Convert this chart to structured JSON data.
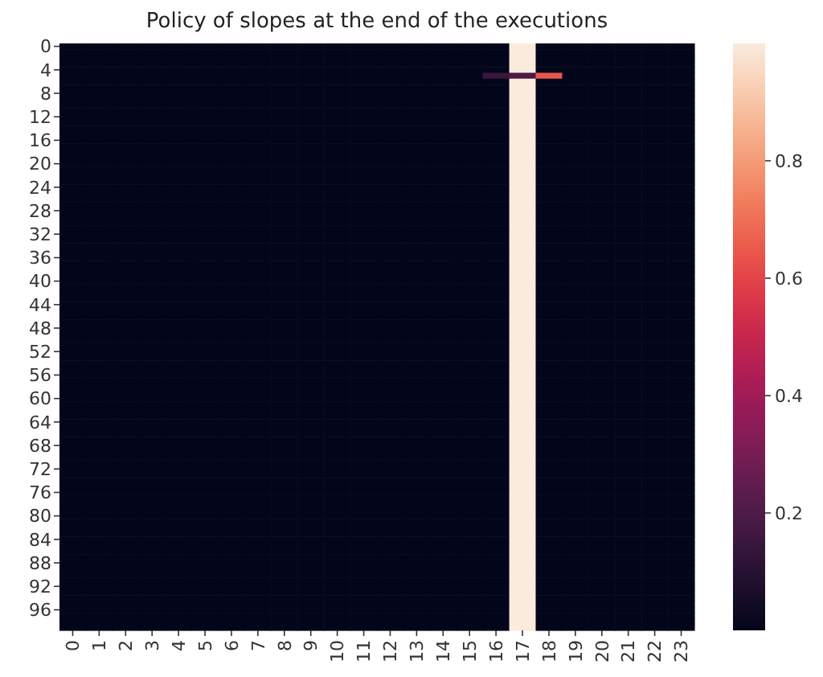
{
  "chart_data": {
    "type": "heatmap",
    "title": "Policy of slopes at the end of the executions",
    "categories": [
      "0",
      "1",
      "2",
      "3",
      "4",
      "5",
      "6",
      "7",
      "8",
      "9",
      "10",
      "11",
      "12",
      "13",
      "14",
      "15",
      "16",
      "17",
      "18",
      "19",
      "20",
      "21",
      "22",
      "23"
    ],
    "y_categories": [
      "0",
      null,
      null,
      null,
      "4",
      null,
      null,
      null,
      "8",
      null,
      null,
      null,
      "12",
      null,
      null,
      null,
      "16",
      null,
      null,
      null,
      "20",
      null,
      null,
      null,
      "24",
      null,
      null,
      null,
      "28",
      null,
      null,
      null,
      "32",
      null,
      null,
      null,
      "36",
      null,
      null,
      null,
      "40",
      null,
      null,
      null,
      "44",
      null,
      null,
      null,
      "48",
      null,
      null,
      null,
      "52",
      null,
      null,
      null,
      "56",
      null,
      null,
      null,
      "60",
      null,
      null,
      null,
      "64",
      null,
      null,
      null,
      "68",
      null,
      null,
      null,
      "72",
      null,
      null,
      null,
      "76",
      null,
      null,
      null,
      "80",
      null,
      null,
      null,
      "84",
      null,
      null,
      null,
      "88",
      null,
      null,
      null,
      "92",
      null,
      null,
      null,
      "96",
      null,
      null,
      null
    ],
    "clim": [
      0,
      1
    ],
    "cticks": [
      0.2,
      0.4,
      0.6,
      0.8
    ],
    "cells": [
      [
        0,
        0,
        0,
        0,
        0,
        0,
        0,
        0,
        0,
        0,
        0,
        0,
        0,
        0,
        0,
        0,
        0,
        1,
        0,
        0,
        0,
        0,
        0,
        0
      ],
      [
        0,
        0,
        0,
        0,
        0,
        0,
        0,
        0,
        0,
        0,
        0,
        0,
        0,
        0,
        0,
        0,
        0,
        1,
        0,
        0,
        0,
        0,
        0,
        0
      ],
      [
        0,
        0,
        0,
        0,
        0,
        0,
        0,
        0,
        0,
        0,
        0,
        0,
        0,
        0,
        0,
        0,
        0,
        1,
        0,
        0,
        0,
        0,
        0,
        0
      ],
      [
        0,
        0,
        0,
        0,
        0,
        0,
        0,
        0,
        0,
        0,
        0,
        0,
        0,
        0,
        0,
        0,
        0,
        1,
        0,
        0,
        0,
        0,
        0,
        0
      ],
      [
        0,
        0,
        0,
        0,
        0,
        0,
        0,
        0,
        0,
        0,
        0,
        0,
        0,
        0,
        0,
        0,
        0,
        1,
        0,
        0,
        0,
        0,
        0,
        0
      ],
      [
        0,
        0,
        0,
        0,
        0,
        0,
        0,
        0,
        0,
        0,
        0,
        0,
        0,
        0,
        0,
        0,
        0.15,
        0.2,
        0.65,
        0,
        0,
        0,
        0,
        0
      ],
      [
        0,
        0,
        0,
        0,
        0,
        0,
        0,
        0,
        0,
        0,
        0,
        0,
        0,
        0,
        0,
        0,
        0,
        1,
        0,
        0,
        0,
        0,
        0,
        0
      ],
      [
        0,
        0,
        0,
        0,
        0,
        0,
        0,
        0,
        0,
        0,
        0,
        0,
        0,
        0,
        0,
        0,
        0,
        1,
        0,
        0,
        0,
        0,
        0,
        0
      ],
      [
        0,
        0,
        0,
        0,
        0,
        0,
        0,
        0,
        0,
        0,
        0,
        0,
        0,
        0,
        0,
        0,
        0,
        1,
        0,
        0,
        0,
        0,
        0,
        0
      ],
      [
        0,
        0,
        0,
        0,
        0,
        0,
        0,
        0,
        0,
        0,
        0,
        0,
        0,
        0,
        0,
        0,
        0,
        1,
        0,
        0,
        0,
        0,
        0,
        0
      ],
      [
        0,
        0,
        0,
        0,
        0,
        0,
        0,
        0,
        0,
        0,
        0,
        0,
        0,
        0,
        0,
        0,
        0,
        1,
        0,
        0,
        0,
        0,
        0,
        0
      ],
      [
        0,
        0,
        0,
        0,
        0,
        0,
        0,
        0,
        0,
        0,
        0,
        0,
        0,
        0,
        0,
        0,
        0,
        1,
        0,
        0,
        0,
        0,
        0,
        0
      ],
      [
        0,
        0,
        0,
        0,
        0,
        0,
        0,
        0,
        0,
        0,
        0,
        0,
        0,
        0,
        0,
        0,
        0,
        1,
        0,
        0,
        0,
        0,
        0,
        0
      ],
      [
        0,
        0,
        0,
        0,
        0,
        0,
        0,
        0,
        0,
        0,
        0,
        0,
        0,
        0,
        0,
        0,
        0,
        1,
        0,
        0,
        0,
        0,
        0,
        0
      ],
      [
        0,
        0,
        0,
        0,
        0,
        0,
        0,
        0,
        0,
        0,
        0,
        0,
        0,
        0,
        0,
        0,
        0,
        1,
        0,
        0,
        0,
        0,
        0,
        0
      ],
      [
        0,
        0,
        0,
        0,
        0,
        0,
        0,
        0,
        0,
        0,
        0,
        0,
        0,
        0,
        0,
        0,
        0,
        1,
        0,
        0,
        0,
        0,
        0,
        0
      ],
      [
        0,
        0,
        0,
        0,
        0,
        0,
        0,
        0,
        0,
        0,
        0,
        0,
        0,
        0,
        0,
        0,
        0,
        1,
        0,
        0,
        0,
        0,
        0,
        0
      ],
      [
        0,
        0,
        0,
        0,
        0,
        0,
        0,
        0,
        0,
        0,
        0,
        0,
        0,
        0,
        0,
        0,
        0,
        1,
        0,
        0,
        0,
        0,
        0,
        0
      ],
      [
        0,
        0,
        0,
        0,
        0,
        0,
        0,
        0,
        0,
        0,
        0,
        0,
        0,
        0,
        0,
        0,
        0,
        1,
        0,
        0,
        0,
        0,
        0,
        0
      ],
      [
        0,
        0,
        0,
        0,
        0,
        0,
        0,
        0,
        0,
        0,
        0,
        0,
        0,
        0,
        0,
        0,
        0,
        1,
        0,
        0,
        0,
        0,
        0,
        0
      ],
      [
        0,
        0,
        0,
        0,
        0,
        0,
        0,
        0,
        0,
        0,
        0,
        0,
        0,
        0,
        0,
        0,
        0,
        1,
        0,
        0,
        0,
        0,
        0,
        0
      ],
      [
        0,
        0,
        0,
        0,
        0,
        0,
        0,
        0,
        0,
        0,
        0,
        0,
        0,
        0,
        0,
        0,
        0,
        1,
        0,
        0,
        0,
        0,
        0,
        0
      ],
      [
        0,
        0,
        0,
        0,
        0,
        0,
        0,
        0,
        0,
        0,
        0,
        0,
        0,
        0,
        0,
        0,
        0,
        1,
        0,
        0,
        0,
        0,
        0,
        0
      ],
      [
        0,
        0,
        0,
        0,
        0,
        0,
        0,
        0,
        0,
        0,
        0,
        0,
        0,
        0,
        0,
        0,
        0,
        1,
        0,
        0,
        0,
        0,
        0,
        0
      ],
      [
        0,
        0,
        0,
        0,
        0,
        0,
        0,
        0,
        0,
        0,
        0,
        0,
        0,
        0,
        0,
        0,
        0,
        1,
        0,
        0,
        0,
        0,
        0,
        0
      ],
      [
        0,
        0,
        0,
        0,
        0,
        0,
        0,
        0,
        0,
        0,
        0,
        0,
        0,
        0,
        0,
        0,
        0,
        1,
        0,
        0,
        0,
        0,
        0,
        0
      ],
      [
        0,
        0,
        0,
        0,
        0,
        0,
        0,
        0,
        0,
        0,
        0,
        0,
        0,
        0,
        0,
        0,
        0,
        1,
        0,
        0,
        0,
        0,
        0,
        0
      ],
      [
        0,
        0,
        0,
        0,
        0,
        0,
        0,
        0,
        0,
        0,
        0,
        0,
        0,
        0,
        0,
        0,
        0,
        1,
        0,
        0,
        0,
        0,
        0,
        0
      ],
      [
        0,
        0,
        0,
        0,
        0,
        0,
        0,
        0,
        0,
        0,
        0,
        0,
        0,
        0,
        0,
        0,
        0,
        1,
        0,
        0,
        0,
        0,
        0,
        0
      ],
      [
        0,
        0,
        0,
        0,
        0,
        0,
        0,
        0,
        0,
        0,
        0,
        0,
        0,
        0,
        0,
        0,
        0,
        1,
        0,
        0,
        0,
        0,
        0,
        0
      ],
      [
        0,
        0,
        0,
        0,
        0,
        0,
        0,
        0,
        0,
        0,
        0,
        0,
        0,
        0,
        0,
        0,
        0,
        1,
        0,
        0,
        0,
        0,
        0,
        0
      ],
      [
        0,
        0,
        0,
        0,
        0,
        0,
        0,
        0,
        0,
        0,
        0,
        0,
        0,
        0,
        0,
        0,
        0,
        1,
        0,
        0,
        0,
        0,
        0,
        0
      ],
      [
        0,
        0,
        0,
        0,
        0,
        0,
        0,
        0,
        0,
        0,
        0,
        0,
        0,
        0,
        0,
        0,
        0,
        1,
        0,
        0,
        0,
        0,
        0,
        0
      ],
      [
        0,
        0,
        0,
        0,
        0,
        0,
        0,
        0,
        0,
        0,
        0,
        0,
        0,
        0,
        0,
        0,
        0,
        1,
        0,
        0,
        0,
        0,
        0,
        0
      ],
      [
        0,
        0,
        0,
        0,
        0,
        0,
        0,
        0,
        0,
        0,
        0,
        0,
        0,
        0,
        0,
        0,
        0,
        1,
        0,
        0,
        0,
        0,
        0,
        0
      ],
      [
        0,
        0,
        0,
        0,
        0,
        0,
        0,
        0,
        0,
        0,
        0,
        0,
        0,
        0,
        0,
        0,
        0,
        1,
        0,
        0,
        0,
        0,
        0,
        0
      ],
      [
        0,
        0,
        0,
        0,
        0,
        0,
        0,
        0,
        0,
        0,
        0,
        0,
        0,
        0,
        0,
        0,
        0,
        1,
        0,
        0,
        0,
        0,
        0,
        0
      ],
      [
        0,
        0,
        0,
        0,
        0,
        0,
        0,
        0,
        0,
        0,
        0,
        0,
        0,
        0,
        0,
        0,
        0,
        1,
        0,
        0,
        0,
        0,
        0,
        0
      ],
      [
        0,
        0,
        0,
        0,
        0,
        0,
        0,
        0,
        0,
        0,
        0,
        0,
        0,
        0,
        0,
        0,
        0,
        1,
        0,
        0,
        0,
        0,
        0,
        0
      ],
      [
        0,
        0,
        0,
        0,
        0,
        0,
        0,
        0,
        0,
        0,
        0,
        0,
        0,
        0,
        0,
        0,
        0,
        1,
        0,
        0,
        0,
        0,
        0,
        0
      ],
      [
        0,
        0,
        0,
        0,
        0,
        0,
        0,
        0,
        0,
        0,
        0,
        0,
        0,
        0,
        0,
        0,
        0,
        1,
        0,
        0,
        0,
        0,
        0,
        0
      ],
      [
        0,
        0,
        0,
        0,
        0,
        0,
        0,
        0,
        0,
        0,
        0,
        0,
        0,
        0,
        0,
        0,
        0,
        1,
        0,
        0,
        0,
        0,
        0,
        0
      ],
      [
        0,
        0,
        0,
        0,
        0,
        0,
        0,
        0,
        0,
        0,
        0,
        0,
        0,
        0,
        0,
        0,
        0,
        1,
        0,
        0,
        0,
        0,
        0,
        0
      ],
      [
        0,
        0,
        0,
        0,
        0,
        0,
        0,
        0,
        0,
        0,
        0,
        0,
        0,
        0,
        0,
        0,
        0,
        1,
        0,
        0,
        0,
        0,
        0,
        0
      ],
      [
        0,
        0,
        0,
        0,
        0,
        0,
        0,
        0,
        0,
        0,
        0,
        0,
        0,
        0,
        0,
        0,
        0,
        1,
        0,
        0,
        0,
        0,
        0,
        0
      ],
      [
        0,
        0,
        0,
        0,
        0,
        0,
        0,
        0,
        0,
        0,
        0,
        0,
        0,
        0,
        0,
        0,
        0,
        1,
        0,
        0,
        0,
        0,
        0,
        0
      ],
      [
        0,
        0,
        0,
        0,
        0,
        0,
        0,
        0,
        0,
        0,
        0,
        0,
        0,
        0,
        0,
        0,
        0,
        1,
        0,
        0,
        0,
        0,
        0,
        0
      ],
      [
        0,
        0,
        0,
        0,
        0,
        0,
        0,
        0,
        0,
        0,
        0,
        0,
        0,
        0,
        0,
        0,
        0,
        1,
        0,
        0,
        0,
        0,
        0,
        0
      ],
      [
        0,
        0,
        0,
        0,
        0,
        0,
        0,
        0,
        0,
        0,
        0,
        0,
        0,
        0,
        0,
        0,
        0,
        1,
        0,
        0,
        0,
        0,
        0,
        0
      ],
      [
        0,
        0,
        0,
        0,
        0,
        0,
        0,
        0,
        0,
        0,
        0,
        0,
        0,
        0,
        0,
        0,
        0,
        1,
        0,
        0,
        0,
        0,
        0,
        0
      ],
      [
        0,
        0,
        0,
        0,
        0,
        0,
        0,
        0,
        0,
        0,
        0,
        0,
        0,
        0,
        0,
        0,
        0,
        1,
        0,
        0,
        0,
        0,
        0,
        0
      ],
      [
        0,
        0,
        0,
        0,
        0,
        0,
        0,
        0,
        0,
        0,
        0,
        0,
        0,
        0,
        0,
        0,
        0,
        1,
        0,
        0,
        0,
        0,
        0,
        0
      ],
      [
        0,
        0,
        0,
        0,
        0,
        0,
        0,
        0,
        0,
        0,
        0,
        0,
        0,
        0,
        0,
        0,
        0,
        1,
        0,
        0,
        0,
        0,
        0,
        0
      ],
      [
        0,
        0,
        0,
        0,
        0,
        0,
        0,
        0,
        0,
        0,
        0,
        0,
        0,
        0,
        0,
        0,
        0,
        1,
        0,
        0,
        0,
        0,
        0,
        0
      ],
      [
        0,
        0,
        0,
        0,
        0,
        0,
        0,
        0,
        0,
        0,
        0,
        0,
        0,
        0,
        0,
        0,
        0,
        1,
        0,
        0,
        0,
        0,
        0,
        0
      ],
      [
        0,
        0,
        0,
        0,
        0,
        0,
        0,
        0,
        0,
        0,
        0,
        0,
        0,
        0,
        0,
        0,
        0,
        1,
        0,
        0,
        0,
        0,
        0,
        0
      ],
      [
        0,
        0,
        0,
        0,
        0,
        0,
        0,
        0,
        0,
        0,
        0,
        0,
        0,
        0,
        0,
        0,
        0,
        1,
        0,
        0,
        0,
        0,
        0,
        0
      ],
      [
        0,
        0,
        0,
        0,
        0,
        0,
        0,
        0,
        0,
        0,
        0,
        0,
        0,
        0,
        0,
        0,
        0,
        1,
        0,
        0,
        0,
        0,
        0,
        0
      ],
      [
        0,
        0,
        0,
        0,
        0,
        0,
        0,
        0,
        0,
        0,
        0,
        0,
        0,
        0,
        0,
        0,
        0,
        1,
        0,
        0,
        0,
        0,
        0,
        0
      ],
      [
        0,
        0,
        0,
        0,
        0,
        0,
        0,
        0,
        0,
        0,
        0,
        0,
        0,
        0,
        0,
        0,
        0,
        1,
        0,
        0,
        0,
        0,
        0,
        0
      ],
      [
        0,
        0,
        0,
        0,
        0,
        0,
        0,
        0,
        0,
        0,
        0,
        0,
        0,
        0,
        0,
        0,
        0,
        1,
        0,
        0,
        0,
        0,
        0,
        0
      ],
      [
        0,
        0,
        0,
        0,
        0,
        0,
        0,
        0,
        0,
        0,
        0,
        0,
        0,
        0,
        0,
        0,
        0,
        1,
        0,
        0,
        0,
        0,
        0,
        0
      ],
      [
        0,
        0,
        0,
        0,
        0,
        0,
        0,
        0,
        0,
        0,
        0,
        0,
        0,
        0,
        0,
        0,
        0,
        1,
        0,
        0,
        0,
        0,
        0,
        0
      ],
      [
        0,
        0,
        0,
        0,
        0,
        0,
        0,
        0,
        0,
        0,
        0,
        0,
        0,
        0,
        0,
        0,
        0,
        1,
        0,
        0,
        0,
        0,
        0,
        0
      ],
      [
        0,
        0,
        0,
        0,
        0,
        0,
        0,
        0,
        0,
        0,
        0,
        0,
        0,
        0,
        0,
        0,
        0,
        1,
        0,
        0,
        0,
        0,
        0,
        0
      ],
      [
        0,
        0,
        0,
        0,
        0,
        0,
        0,
        0,
        0,
        0,
        0,
        0,
        0,
        0,
        0,
        0,
        0,
        1,
        0,
        0,
        0,
        0,
        0,
        0
      ],
      [
        0,
        0,
        0,
        0,
        0,
        0,
        0,
        0,
        0,
        0,
        0,
        0,
        0,
        0,
        0,
        0,
        0,
        1,
        0,
        0,
        0,
        0,
        0,
        0
      ],
      [
        0,
        0,
        0,
        0,
        0,
        0,
        0,
        0,
        0,
        0,
        0,
        0,
        0,
        0,
        0,
        0,
        0,
        1,
        0,
        0,
        0,
        0,
        0,
        0
      ],
      [
        0,
        0,
        0,
        0,
        0,
        0,
        0,
        0,
        0,
        0,
        0,
        0,
        0,
        0,
        0,
        0,
        0,
        1,
        0,
        0,
        0,
        0,
        0,
        0
      ],
      [
        0,
        0,
        0,
        0,
        0,
        0,
        0,
        0,
        0,
        0,
        0,
        0,
        0,
        0,
        0,
        0,
        0,
        1,
        0,
        0,
        0,
        0,
        0,
        0
      ],
      [
        0,
        0,
        0,
        0,
        0,
        0,
        0,
        0,
        0,
        0,
        0,
        0,
        0,
        0,
        0,
        0,
        0,
        1,
        0,
        0,
        0,
        0,
        0,
        0
      ],
      [
        0,
        0,
        0,
        0,
        0,
        0,
        0,
        0,
        0,
        0,
        0,
        0,
        0,
        0,
        0,
        0,
        0,
        1,
        0,
        0,
        0,
        0,
        0,
        0
      ],
      [
        0,
        0,
        0,
        0,
        0,
        0,
        0,
        0,
        0,
        0,
        0,
        0,
        0,
        0,
        0,
        0,
        0,
        1,
        0,
        0,
        0,
        0,
        0,
        0
      ],
      [
        0,
        0,
        0,
        0,
        0,
        0,
        0,
        0,
        0,
        0,
        0,
        0,
        0,
        0,
        0,
        0,
        0,
        1,
        0,
        0,
        0,
        0,
        0,
        0
      ],
      [
        0,
        0,
        0,
        0,
        0,
        0,
        0,
        0,
        0,
        0,
        0,
        0,
        0,
        0,
        0,
        0,
        0,
        1,
        0,
        0,
        0,
        0,
        0,
        0
      ],
      [
        0,
        0,
        0,
        0,
        0,
        0,
        0,
        0,
        0,
        0,
        0,
        0,
        0,
        0,
        0,
        0,
        0,
        1,
        0,
        0,
        0,
        0,
        0,
        0
      ],
      [
        0,
        0,
        0,
        0,
        0,
        0,
        0,
        0,
        0,
        0,
        0,
        0,
        0,
        0,
        0,
        0,
        0,
        1,
        0,
        0,
        0,
        0,
        0,
        0
      ],
      [
        0,
        0,
        0,
        0,
        0,
        0,
        0,
        0,
        0,
        0,
        0,
        0,
        0,
        0,
        0,
        0,
        0,
        1,
        0,
        0,
        0,
        0,
        0,
        0
      ],
      [
        0,
        0,
        0,
        0,
        0,
        0,
        0,
        0,
        0,
        0,
        0,
        0,
        0,
        0,
        0,
        0,
        0,
        1,
        0,
        0,
        0,
        0,
        0,
        0
      ],
      [
        0,
        0,
        0,
        0,
        0,
        0,
        0,
        0,
        0,
        0,
        0,
        0,
        0,
        0,
        0,
        0,
        0,
        1,
        0,
        0,
        0,
        0,
        0,
        0
      ],
      [
        0,
        0,
        0,
        0,
        0,
        0,
        0,
        0,
        0,
        0,
        0,
        0,
        0,
        0,
        0,
        0,
        0,
        1,
        0,
        0,
        0,
        0,
        0,
        0
      ],
      [
        0,
        0,
        0,
        0,
        0,
        0,
        0,
        0,
        0,
        0,
        0,
        0,
        0,
        0,
        0,
        0,
        0,
        1,
        0,
        0,
        0,
        0,
        0,
        0
      ],
      [
        0,
        0,
        0,
        0,
        0,
        0,
        0,
        0,
        0,
        0,
        0,
        0,
        0,
        0,
        0,
        0,
        0,
        1,
        0,
        0,
        0,
        0,
        0,
        0
      ],
      [
        0,
        0,
        0,
        0,
        0,
        0,
        0,
        0,
        0,
        0,
        0,
        0,
        0,
        0,
        0,
        0,
        0,
        1,
        0,
        0,
        0,
        0,
        0,
        0
      ],
      [
        0,
        0,
        0,
        0,
        0,
        0,
        0,
        0,
        0,
        0,
        0,
        0,
        0,
        0,
        0,
        0,
        0,
        1,
        0,
        0,
        0,
        0,
        0,
        0
      ],
      [
        0,
        0,
        0,
        0,
        0,
        0,
        0,
        0,
        0,
        0,
        0,
        0,
        0,
        0,
        0,
        0,
        0,
        1,
        0,
        0,
        0,
        0,
        0,
        0
      ],
      [
        0,
        0,
        0,
        0,
        0,
        0,
        0,
        0,
        0,
        0,
        0,
        0,
        0,
        0,
        0,
        0,
        0,
        1,
        0,
        0,
        0,
        0,
        0,
        0
      ],
      [
        0,
        0,
        0,
        0,
        0,
        0,
        0,
        0,
        0,
        0,
        0,
        0,
        0,
        0,
        0,
        0,
        0,
        1,
        0,
        0,
        0,
        0,
        0,
        0
      ],
      [
        0,
        0,
        0,
        0,
        0,
        0,
        0,
        0,
        0,
        0,
        0,
        0,
        0,
        0,
        0,
        0,
        0,
        1,
        0,
        0,
        0,
        0,
        0,
        0
      ],
      [
        0,
        0,
        0,
        0,
        0,
        0,
        0,
        0,
        0,
        0,
        0,
        0,
        0,
        0,
        0,
        0,
        0,
        1,
        0,
        0,
        0,
        0,
        0,
        0
      ],
      [
        0,
        0,
        0,
        0,
        0,
        0,
        0,
        0,
        0,
        0,
        0,
        0,
        0,
        0,
        0,
        0,
        0,
        1,
        0,
        0,
        0,
        0,
        0,
        0
      ],
      [
        0,
        0,
        0,
        0,
        0,
        0,
        0,
        0,
        0,
        0,
        0,
        0,
        0,
        0,
        0,
        0,
        0,
        1,
        0,
        0,
        0,
        0,
        0,
        0
      ],
      [
        0,
        0,
        0,
        0,
        0,
        0,
        0,
        0,
        0,
        0,
        0,
        0,
        0,
        0,
        0,
        0,
        0,
        1,
        0,
        0,
        0,
        0,
        0,
        0
      ],
      [
        0,
        0,
        0,
        0,
        0,
        0,
        0,
        0,
        0,
        0,
        0,
        0,
        0,
        0,
        0,
        0,
        0,
        1,
        0,
        0,
        0,
        0,
        0,
        0
      ],
      [
        0,
        0,
        0,
        0,
        0,
        0,
        0,
        0,
        0,
        0,
        0,
        0,
        0,
        0,
        0,
        0,
        0,
        1,
        0,
        0,
        0,
        0,
        0,
        0
      ],
      [
        0,
        0,
        0,
        0,
        0,
        0,
        0,
        0,
        0,
        0,
        0,
        0,
        0,
        0,
        0,
        0,
        0,
        1,
        0,
        0,
        0,
        0,
        0,
        0
      ],
      [
        0,
        0,
        0,
        0,
        0,
        0,
        0,
        0,
        0,
        0,
        0,
        0,
        0,
        0,
        0,
        0,
        0,
        1,
        0,
        0,
        0,
        0,
        0,
        0
      ],
      [
        0,
        0,
        0,
        0,
        0,
        0,
        0,
        0,
        0,
        0,
        0,
        0,
        0,
        0,
        0,
        0,
        0,
        1,
        0,
        0,
        0,
        0,
        0,
        0
      ],
      [
        0,
        0,
        0,
        0,
        0,
        0,
        0,
        0,
        0,
        0,
        0,
        0,
        0,
        0,
        0,
        0,
        0,
        1,
        0,
        0,
        0,
        0,
        0,
        0
      ],
      [
        0,
        0,
        0,
        0,
        0,
        0,
        0,
        0,
        0,
        0,
        0,
        0,
        0,
        0,
        0,
        0,
        0,
        1,
        0,
        0,
        0,
        0,
        0,
        0
      ]
    ]
  }
}
